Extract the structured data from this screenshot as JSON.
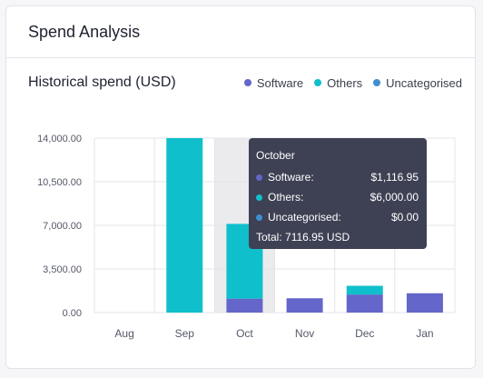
{
  "header": {
    "title": "Spend Analysis"
  },
  "chart_section": {
    "subtitle": "Historical spend (USD)",
    "legend": [
      {
        "label": "Software",
        "color": "#6466c9"
      },
      {
        "label": "Others",
        "color": "#0fc0cc"
      },
      {
        "label": "Uncategorised",
        "color": "#3d8fd0"
      }
    ]
  },
  "tooltip": {
    "title": "October",
    "rows": [
      {
        "label": "Software:",
        "value": "$1,116.95",
        "color": "#6466c9"
      },
      {
        "label": "Others:",
        "value": "$6,000.00",
        "color": "#0fc0cc"
      },
      {
        "label": "Uncategorised:",
        "value": "$0.00",
        "color": "#3d8fd0"
      }
    ],
    "total": "Total: 7116.95 USD"
  },
  "chart_data": {
    "type": "bar",
    "stacked": true,
    "categories": [
      "Aug",
      "Sep",
      "Oct",
      "Nov",
      "Dec",
      "Jan"
    ],
    "series": [
      {
        "name": "Software",
        "color": "#6466c9",
        "values": [
          0,
          0,
          1116.95,
          1150,
          1450,
          1550
        ]
      },
      {
        "name": "Others",
        "color": "#0fc0cc",
        "values": [
          0,
          14000,
          6000,
          0,
          700,
          0
        ]
      },
      {
        "name": "Uncategorised",
        "color": "#3d8fd0",
        "values": [
          0,
          0,
          0,
          0,
          0,
          0
        ]
      }
    ],
    "ylim": [
      0,
      14000
    ],
    "yticks": [
      "0.00",
      "3,500.00",
      "7,000.00",
      "10,500.00",
      "14,000.00"
    ],
    "ytick_values": [
      0,
      3500,
      7000,
      10500,
      14000
    ],
    "highlighted_category": "Oct",
    "grid": true,
    "legend_position": "top-right"
  }
}
